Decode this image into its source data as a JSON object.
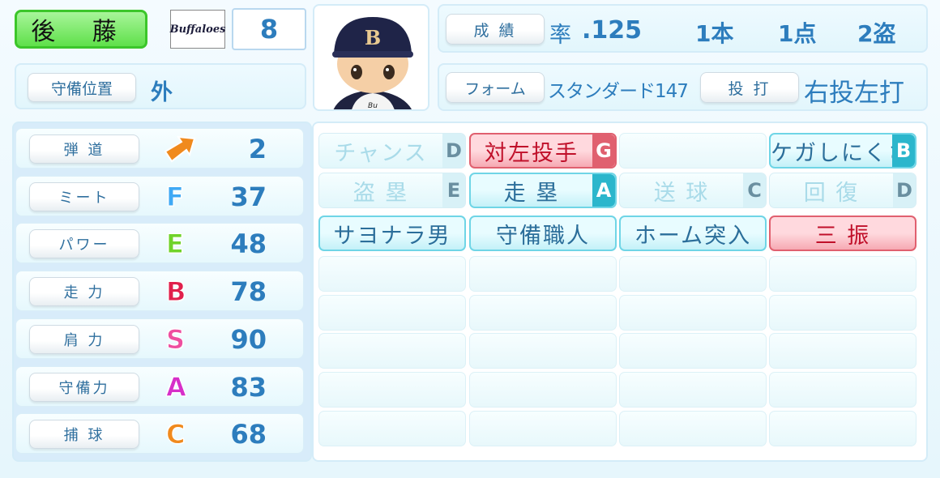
{
  "player": {
    "name": "後 藤",
    "team_logo": "Buffaloes",
    "number": "8",
    "position_label": "守備位置",
    "position": "外"
  },
  "record": {
    "label": "成 績",
    "avg_label": "率",
    "avg": ".125",
    "hr": "1本",
    "rbi": "1点",
    "sb": "2盗"
  },
  "form": {
    "label": "フォーム",
    "value": "スタンダード147",
    "hand_label": "投 打",
    "hand": "右投左打"
  },
  "stats": [
    {
      "label": "弾 道",
      "grade": "",
      "value": "2",
      "icon": "trajectory-arrow-icon",
      "color": "#f08a1d"
    },
    {
      "label": "ミート",
      "grade": "F",
      "value": "37",
      "color": "#3fa9f5"
    },
    {
      "label": "パワー",
      "grade": "E",
      "value": "48",
      "color": "#6fd32a"
    },
    {
      "label": "走 力",
      "grade": "B",
      "value": "78",
      "color": "#e0204c"
    },
    {
      "label": "肩 力",
      "grade": "S",
      "value": "90",
      "color": "#ee4fa0"
    },
    {
      "label": "守備力",
      "grade": "A",
      "value": "83",
      "color": "#d62fc9"
    },
    {
      "label": "捕 球",
      "grade": "C",
      "value": "68",
      "color": "#f08a1d"
    }
  ],
  "abilities": [
    {
      "label": "チャンス",
      "grade": "D",
      "type": "faint"
    },
    {
      "label": "対左投手",
      "grade": "G",
      "type": "neg"
    },
    {
      "label": "",
      "grade": "",
      "type": "empty"
    },
    {
      "label": "ケガしにくさ",
      "grade": "B",
      "type": "pos"
    },
    {
      "label": "盗 塁",
      "grade": "E",
      "type": "faint"
    },
    {
      "label": "走 塁",
      "grade": "A",
      "type": "pos"
    },
    {
      "label": "送 球",
      "grade": "C",
      "type": "faint"
    },
    {
      "label": "回 復",
      "grade": "D",
      "type": "faint"
    },
    {
      "label": "サヨナラ男",
      "grade": "",
      "type": "pos"
    },
    {
      "label": "守備職人",
      "grade": "",
      "type": "pos"
    },
    {
      "label": "ホーム突入",
      "grade": "",
      "type": "pos"
    },
    {
      "label": "三 振",
      "grade": "",
      "type": "neg"
    }
  ]
}
